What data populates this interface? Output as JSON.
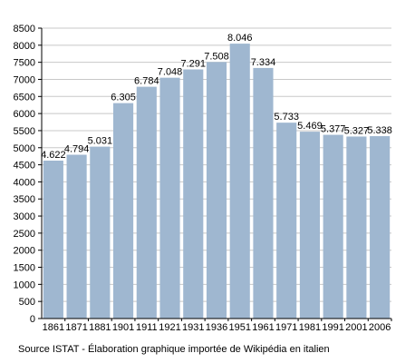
{
  "chart_data": {
    "type": "bar",
    "categories": [
      "1861",
      "1871",
      "1881",
      "1901",
      "1911",
      "1921",
      "1931",
      "1936",
      "1951",
      "1961",
      "1971",
      "1981",
      "1991",
      "2001",
      "2006"
    ],
    "values": [
      4622,
      4794,
      5031,
      6305,
      6784,
      7048,
      7291,
      7508,
      8046,
      7334,
      5733,
      5469,
      5377,
      5327,
      5338
    ],
    "value_labels": [
      "4.622",
      "4.794",
      "5.031",
      "6.305",
      "6.784",
      "7.048",
      "7.291",
      "7.508",
      "8.046",
      "7.334",
      "5.733",
      "5.469",
      "5.377",
      "5.327",
      "5.338"
    ],
    "y_ticks": [
      "0",
      "500",
      "1000",
      "1500",
      "2000",
      "2500",
      "3000",
      "3500",
      "4000",
      "4500",
      "5000",
      "5500",
      "6000",
      "6500",
      "7000",
      "7500",
      "8000",
      "8500"
    ],
    "ylim": [
      0,
      8500
    ],
    "ystep": 500,
    "grid": true,
    "bar_color": "#9fb7d0",
    "grid_color": "#c8c8c8"
  },
  "footer": {
    "source": "Source ISTAT - Élaboration graphique importée de Wikipédia en italien"
  }
}
